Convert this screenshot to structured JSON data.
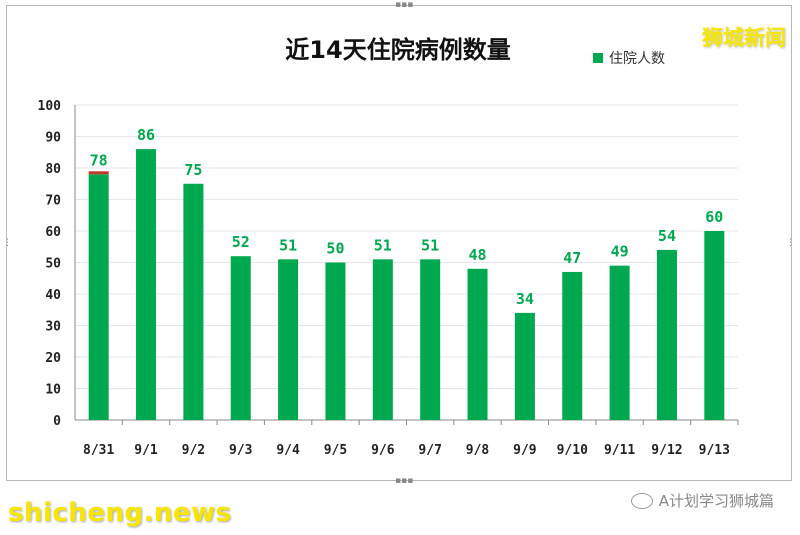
{
  "chart_data": {
    "type": "bar",
    "title": "近14天住院病例数量",
    "categories": [
      "8/31",
      "9/1",
      "9/2",
      "9/3",
      "9/4",
      "9/5",
      "9/6",
      "9/7",
      "9/8",
      "9/9",
      "9/10",
      "9/11",
      "9/12",
      "9/13"
    ],
    "series": [
      {
        "name": "住院人数",
        "values": [
          78,
          86,
          75,
          52,
          51,
          50,
          51,
          51,
          48,
          34,
          47,
          49,
          54,
          60
        ]
      }
    ],
    "ylim": [
      0,
      100
    ],
    "yticks": [
      0,
      10,
      20,
      30,
      40,
      50,
      60,
      70,
      80,
      90,
      100
    ],
    "grid": true,
    "legend": "top-right",
    "colors": {
      "bar": "#00a84f",
      "label": "#00a84f",
      "accent": "#c0392b"
    }
  },
  "watermarks": {
    "top_right": "狮城新闻",
    "bottom_left": "shicheng.news",
    "wechat": "A计划学习狮城篇"
  }
}
